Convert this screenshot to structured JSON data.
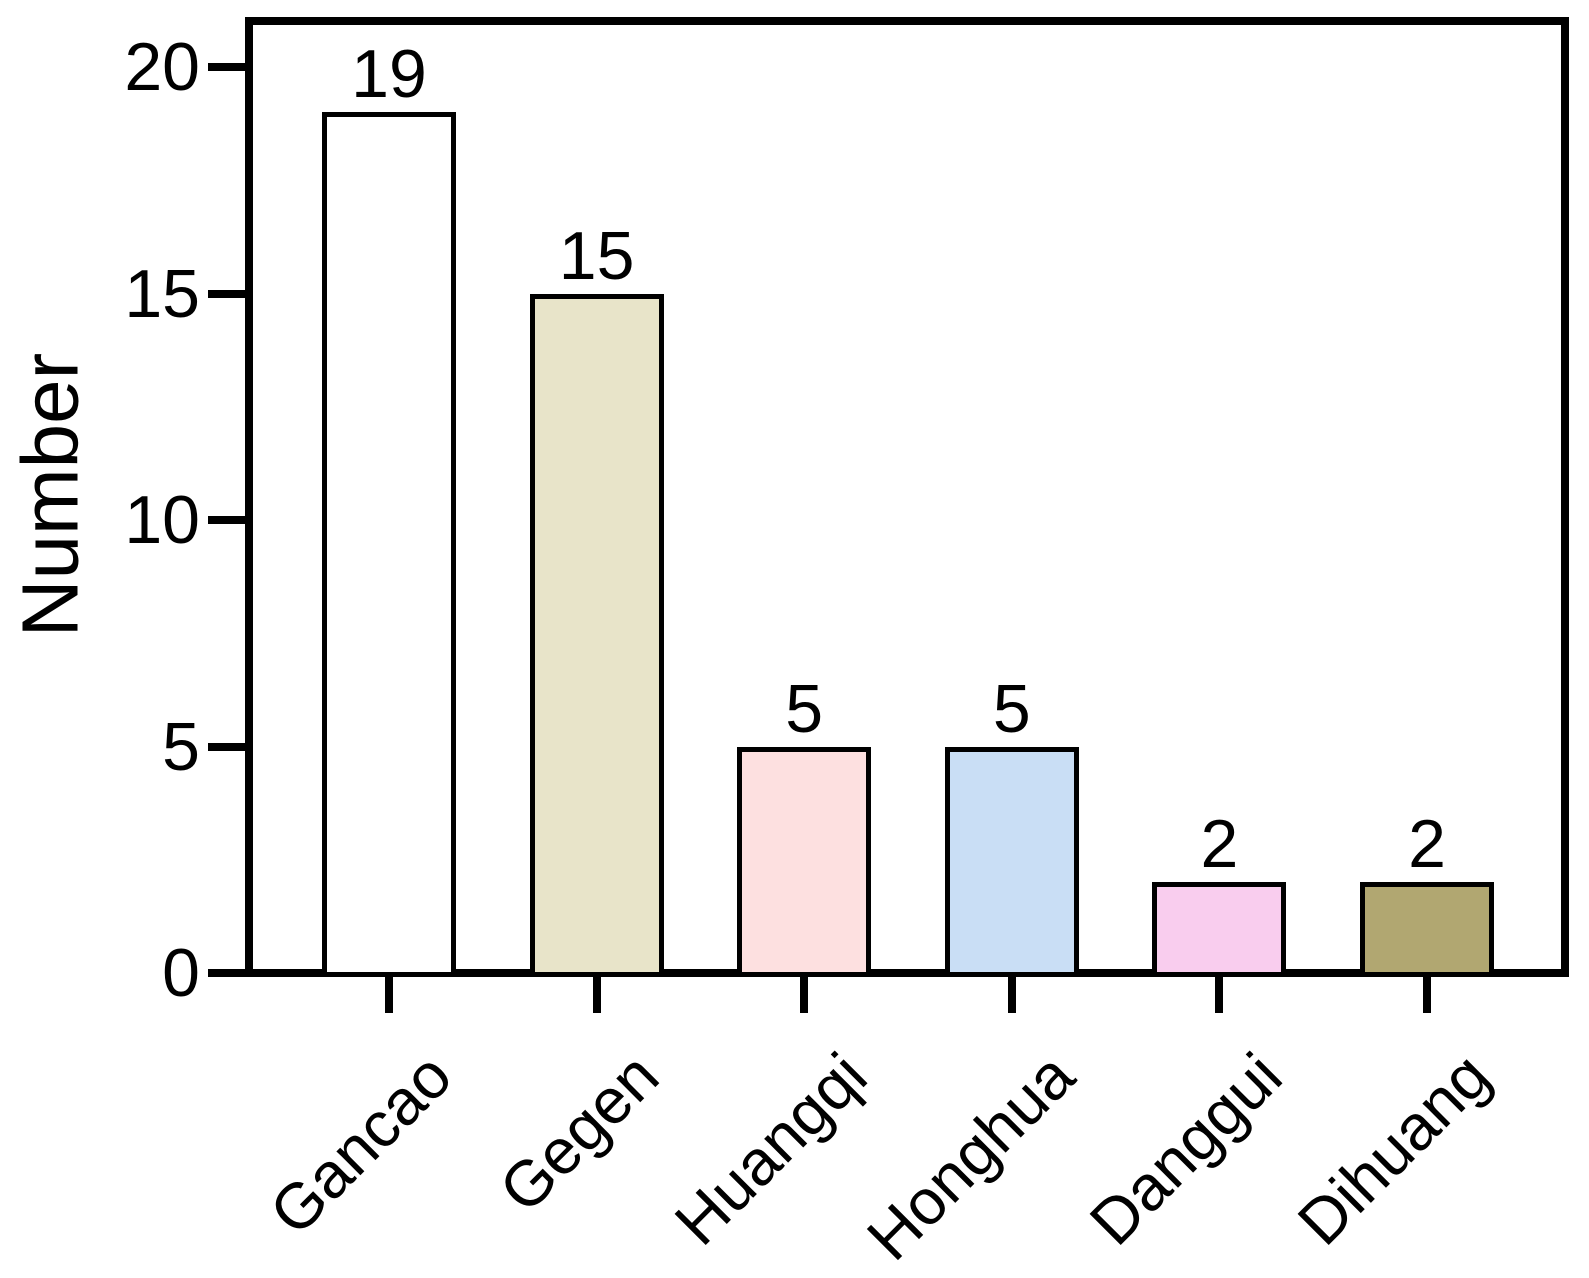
{
  "chart_data": {
    "type": "bar",
    "title": "",
    "xlabel": "",
    "ylabel": "Number",
    "categories": [
      "Gancao",
      "Gegen",
      "Huangqi",
      "Honghua",
      "Danggui",
      "Dihuang"
    ],
    "values": [
      19,
      15,
      5,
      5,
      2,
      2
    ],
    "bar_value_labels": [
      "19",
      "15",
      "5",
      "5",
      "2",
      "2"
    ],
    "bar_colors": [
      "#ffffff",
      "#e8e4c9",
      "#fde0e0",
      "#c9def5",
      "#f9cdee",
      "#b1a771"
    ],
    "bar_border_color": "#000000",
    "axis_color": "#000000",
    "text_color": "#000000",
    "background_color": "#ffffff",
    "yticks": [
      0,
      5,
      10,
      15,
      20
    ],
    "ytick_labels": [
      "0",
      "5",
      "10",
      "15",
      "20"
    ],
    "ylim": [
      0,
      21
    ],
    "grid": false,
    "legend": null,
    "x_tick_rotation_deg": 45,
    "frame": "full box"
  }
}
